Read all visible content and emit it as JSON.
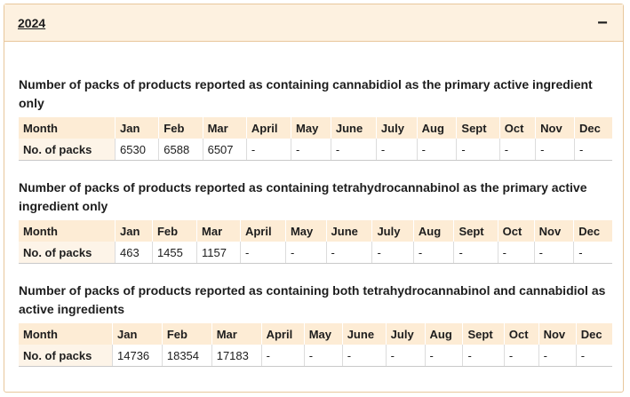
{
  "accordion": {
    "title": "2024",
    "toggle_symbol": "−",
    "toggle_icon": "minus-icon"
  },
  "sections": [
    {
      "title": "Number of packs of products reported as containing cannabidiol as the primary active ingredient only",
      "header": [
        "Month",
        "Jan",
        "Feb",
        "Mar",
        "April",
        "May",
        "June",
        "July",
        "Aug",
        "Sept",
        "Oct",
        "Nov",
        "Dec"
      ],
      "row_label": "No. of packs",
      "values": [
        "6530",
        "6588",
        "6507",
        "-",
        "-",
        "-",
        "-",
        "-",
        "-",
        "-",
        "-",
        "-"
      ]
    },
    {
      "title": "Number of packs of products reported as containing tetrahydrocannabinol as the primary active ingredient only",
      "header": [
        "Month",
        "Jan",
        "Feb",
        "Mar",
        "April",
        "May",
        "June",
        "July",
        "Aug",
        "Sept",
        "Oct",
        "Nov",
        "Dec"
      ],
      "row_label": "No. of packs",
      "values": [
        "463",
        "1455",
        "1157",
        "-",
        "-",
        "-",
        "-",
        "-",
        "-",
        "-",
        "-",
        "-"
      ]
    },
    {
      "title": "Number of packs of products reported as containing both tetrahydrocannabinol and cannabidiol as active ingredients",
      "header": [
        "Month",
        "Jan",
        "Feb",
        "Mar",
        "April",
        "May",
        "June",
        "July",
        "Aug",
        "Sept",
        "Oct",
        "Nov",
        "Dec"
      ],
      "row_label": "No. of packs",
      "values": [
        "14736",
        "18354",
        "17183",
        "-",
        "-",
        "-",
        "-",
        "-",
        "-",
        "-",
        "-",
        "-"
      ]
    }
  ]
}
